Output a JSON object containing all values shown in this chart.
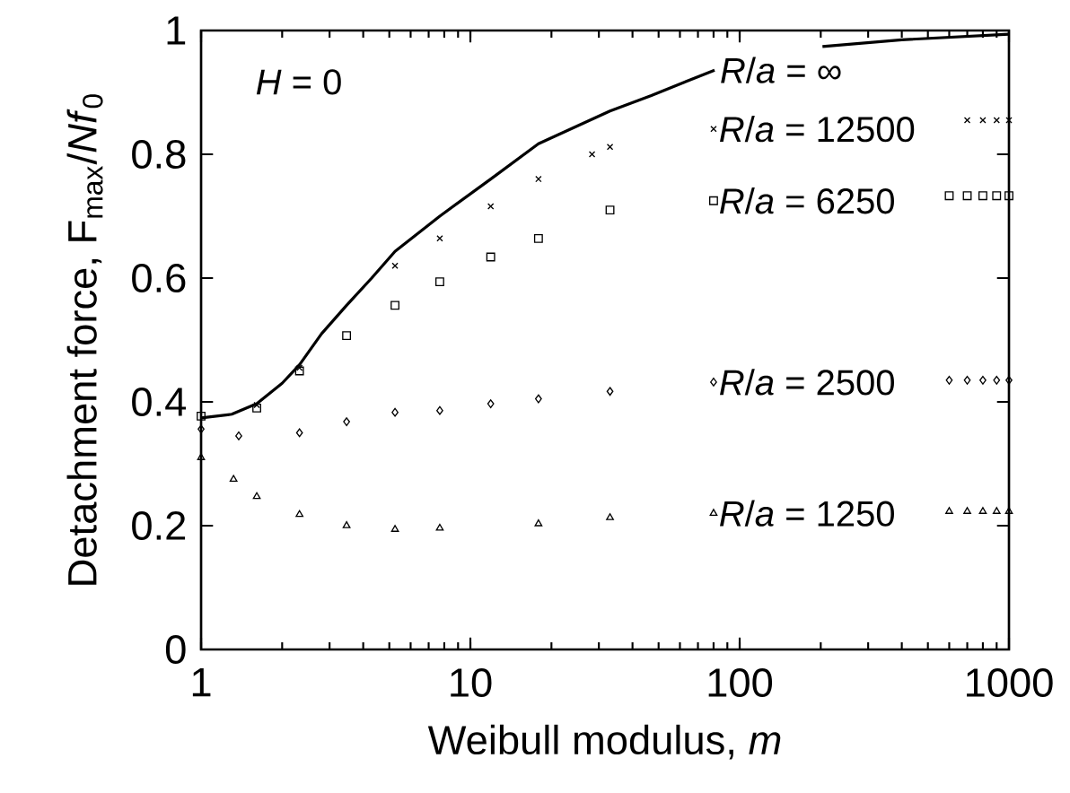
{
  "chart_data": {
    "type": "line",
    "xlabel": "Weibull modulus, *m*",
    "ylabel": "Detachment force, F$_{max}$/*Nf*$_{0}$",
    "log": "x",
    "xlim": [
      1,
      1000
    ],
    "ylim": [
      0,
      1
    ],
    "xticks": [
      1,
      10,
      100,
      1000
    ],
    "yticks": [
      0,
      {
        "value": 0.2,
        "label": "0.2"
      },
      {
        "value": 0.4,
        "label": "0.4"
      },
      {
        "value": 0.6,
        "label": "0.6"
      },
      {
        "value": 0.8,
        "label": "0.8"
      },
      1
    ],
    "grid": false,
    "legend": "right",
    "annotations": [
      "*H* = 0"
    ],
    "series": [
      {
        "name": "*R*/*a* = ∞",
        "marker": "none",
        "line_style": "solid",
        "color": "#000000",
        "x": [
          1,
          1.3,
          1.61,
          2,
          2.32,
          2.8,
          3.47,
          4.3,
          5.25,
          7.7,
          11.9,
          17.9,
          33,
          47,
          80.7,
          120,
          203,
          400,
          1000
        ],
        "values": [
          0.374,
          0.38,
          0.397,
          0.43,
          0.46,
          0.51,
          0.556,
          0.6,
          0.643,
          0.7,
          0.76,
          0.817,
          0.87,
          0.895,
          0.936,
          null,
          0.974,
          0.985,
          0.994
        ]
      },
      {
        "name": "*R*/*a* = 12500",
        "type": "scatter",
        "marker": "cross",
        "color": "#000000",
        "x": [
          1.61,
          2.32,
          5.25,
          7.7,
          11.9,
          17.9,
          28.3,
          33,
          80,
          600,
          700,
          800,
          900,
          1000
        ],
        "values": [
          0.395,
          0.455,
          0.62,
          0.664,
          0.716,
          0.76,
          0.8,
          0.812,
          0.841,
          null,
          0.855,
          0.855,
          0.855,
          0.855
        ]
      },
      {
        "name": "*R*/*a* = 6250",
        "type": "scatter",
        "marker": "square",
        "color": "#000000",
        "x": [
          1,
          1.61,
          2.32,
          3.47,
          5.25,
          7.7,
          11.9,
          17.9,
          33,
          80,
          510,
          600,
          700,
          800,
          900,
          1000
        ],
        "values": [
          0.377,
          0.39,
          0.45,
          0.507,
          0.556,
          0.594,
          0.634,
          0.664,
          0.71,
          0.725,
          null,
          0.733,
          0.733,
          0.733,
          0.733,
          0.733
        ]
      },
      {
        "name": "*R*/*a* = 2500",
        "type": "scatter",
        "marker": "diamond",
        "color": "#000000",
        "x": [
          1,
          1.38,
          2.32,
          3.47,
          5.25,
          7.7,
          11.9,
          17.9,
          33,
          80,
          510,
          600,
          700,
          800,
          900,
          1000
        ],
        "values": [
          0.356,
          0.345,
          0.35,
          0.368,
          0.383,
          0.386,
          0.397,
          0.405,
          0.417,
          0.432,
          null,
          0.435,
          0.435,
          0.435,
          0.435,
          0.435
        ]
      },
      {
        "name": "*R*/*a* = 1250",
        "type": "scatter",
        "marker": "triangle",
        "color": "#000000",
        "x": [
          1,
          1.32,
          1.61,
          2.32,
          3.47,
          5.25,
          7.7,
          17.9,
          33,
          80,
          510,
          600,
          700,
          800,
          900,
          1000
        ],
        "values": [
          0.31,
          0.275,
          0.247,
          0.218,
          0.2,
          0.194,
          0.196,
          0.203,
          0.213,
          0.22,
          null,
          0.223,
          0.223,
          0.223,
          0.223,
          0.223
        ]
      }
    ]
  }
}
